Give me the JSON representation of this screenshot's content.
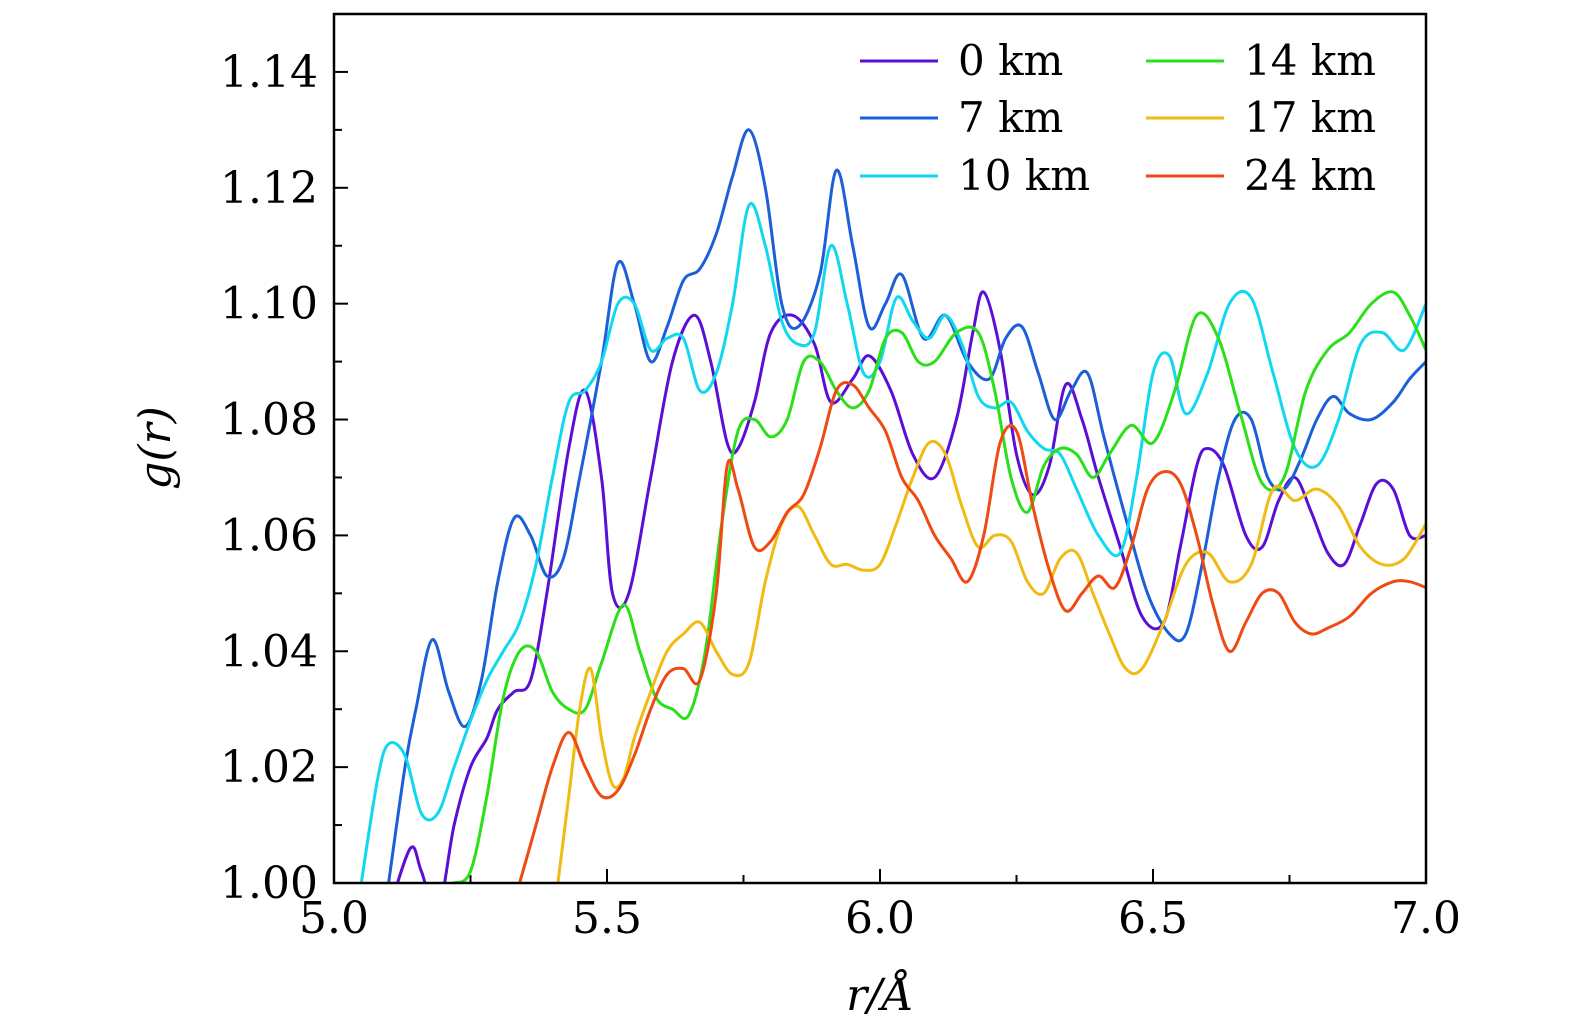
{
  "chart_data": {
    "type": "line",
    "xlabel": "r/Å",
    "ylabel": "g(r)",
    "xlim": [
      5.0,
      7.0
    ],
    "ylim": [
      1.0,
      1.15
    ],
    "xticks": [
      5.0,
      5.5,
      6.0,
      6.5,
      7.0
    ],
    "xtick_labels": [
      "5.0",
      "5.5",
      "6.0",
      "6.5",
      "7.0"
    ],
    "yticks": [
      1.0,
      1.02,
      1.04,
      1.06,
      1.08,
      1.1,
      1.12,
      1.14
    ],
    "ytick_labels": [
      "1.00",
      "1.02",
      "1.04",
      "1.06",
      "1.08",
      "1.10",
      "1.12",
      "1.14"
    ],
    "legend_position": "top-right",
    "series": [
      {
        "name": "0 km",
        "color": "#5b0fd6",
        "x": [
          5.1,
          5.14,
          5.16,
          5.19,
          5.22,
          5.25,
          5.28,
          5.3,
          5.33,
          5.36,
          5.39,
          5.43,
          5.46,
          5.49,
          5.51,
          5.54,
          5.58,
          5.62,
          5.66,
          5.69,
          5.72,
          5.74,
          5.77,
          5.8,
          5.84,
          5.88,
          5.91,
          5.95,
          5.98,
          6.02,
          6.06,
          6.1,
          6.14,
          6.17,
          6.19,
          6.22,
          6.25,
          6.28,
          6.31,
          6.34,
          6.37,
          6.4,
          6.44,
          6.48,
          6.52,
          6.55,
          6.58,
          6.6,
          6.63,
          6.67,
          6.7,
          6.73,
          6.76,
          6.79,
          6.82,
          6.85,
          6.88,
          6.91,
          6.94,
          6.97,
          7.0
        ],
        "y": [
          0.995,
          1.006,
          1.002,
          0.995,
          1.01,
          1.02,
          1.025,
          1.03,
          1.033,
          1.035,
          1.05,
          1.075,
          1.085,
          1.07,
          1.05,
          1.05,
          1.07,
          1.09,
          1.098,
          1.09,
          1.076,
          1.075,
          1.083,
          1.095,
          1.098,
          1.093,
          1.083,
          1.087,
          1.091,
          1.085,
          1.074,
          1.07,
          1.08,
          1.095,
          1.102,
          1.092,
          1.074,
          1.067,
          1.072,
          1.086,
          1.08,
          1.07,
          1.058,
          1.046,
          1.045,
          1.058,
          1.072,
          1.075,
          1.072,
          1.06,
          1.058,
          1.066,
          1.07,
          1.064,
          1.057,
          1.055,
          1.062,
          1.069,
          1.068,
          1.06,
          1.06
        ]
      },
      {
        "name": "7 km",
        "color": "#1c5fd8",
        "x": [
          5.1,
          5.13,
          5.15,
          5.18,
          5.21,
          5.24,
          5.27,
          5.3,
          5.33,
          5.36,
          5.39,
          5.42,
          5.45,
          5.49,
          5.52,
          5.55,
          5.58,
          5.61,
          5.64,
          5.67,
          5.7,
          5.73,
          5.76,
          5.79,
          5.82,
          5.85,
          5.89,
          5.92,
          5.95,
          5.98,
          6.01,
          6.04,
          6.08,
          6.12,
          6.16,
          6.2,
          6.23,
          6.26,
          6.29,
          6.32,
          6.35,
          6.38,
          6.41,
          6.45,
          6.49,
          6.53,
          6.56,
          6.59,
          6.62,
          6.65,
          6.68,
          6.71,
          6.74,
          6.77,
          6.8,
          6.83,
          6.86,
          6.9,
          6.94,
          6.97,
          7.0
        ],
        "y": [
          1.0,
          1.02,
          1.03,
          1.042,
          1.033,
          1.027,
          1.035,
          1.052,
          1.063,
          1.06,
          1.053,
          1.056,
          1.07,
          1.09,
          1.107,
          1.1,
          1.09,
          1.096,
          1.104,
          1.106,
          1.112,
          1.122,
          1.13,
          1.12,
          1.1,
          1.096,
          1.105,
          1.123,
          1.11,
          1.096,
          1.1,
          1.105,
          1.094,
          1.098,
          1.09,
          1.087,
          1.094,
          1.096,
          1.088,
          1.08,
          1.085,
          1.088,
          1.077,
          1.063,
          1.05,
          1.043,
          1.043,
          1.055,
          1.07,
          1.08,
          1.08,
          1.07,
          1.068,
          1.073,
          1.08,
          1.084,
          1.081,
          1.08,
          1.083,
          1.087,
          1.09
        ]
      },
      {
        "name": "10 km",
        "color": "#12d8ef",
        "x": [
          5.05,
          5.08,
          5.1,
          5.13,
          5.16,
          5.19,
          5.22,
          5.25,
          5.28,
          5.31,
          5.34,
          5.37,
          5.4,
          5.43,
          5.46,
          5.49,
          5.52,
          5.55,
          5.58,
          5.61,
          5.64,
          5.67,
          5.7,
          5.73,
          5.76,
          5.79,
          5.82,
          5.85,
          5.88,
          5.91,
          5.94,
          5.97,
          6.0,
          6.03,
          6.06,
          6.09,
          6.12,
          6.15,
          6.18,
          6.21,
          6.24,
          6.27,
          6.3,
          6.33,
          6.36,
          6.4,
          6.44,
          6.47,
          6.5,
          6.53,
          6.56,
          6.6,
          6.64,
          6.68,
          6.72,
          6.76,
          6.8,
          6.84,
          6.88,
          6.92,
          6.96,
          7.0
        ],
        "y": [
          1.0,
          1.018,
          1.024,
          1.022,
          1.012,
          1.012,
          1.02,
          1.028,
          1.035,
          1.04,
          1.045,
          1.055,
          1.07,
          1.083,
          1.085,
          1.09,
          1.1,
          1.1,
          1.092,
          1.094,
          1.094,
          1.085,
          1.088,
          1.1,
          1.117,
          1.11,
          1.097,
          1.093,
          1.095,
          1.11,
          1.1,
          1.088,
          1.09,
          1.101,
          1.097,
          1.094,
          1.098,
          1.093,
          1.084,
          1.082,
          1.083,
          1.078,
          1.075,
          1.074,
          1.068,
          1.06,
          1.057,
          1.07,
          1.088,
          1.091,
          1.081,
          1.088,
          1.1,
          1.101,
          1.088,
          1.075,
          1.072,
          1.08,
          1.093,
          1.095,
          1.092,
          1.1
        ]
      },
      {
        "name": "14 km",
        "color": "#2ae018",
        "x": [
          5.22,
          5.25,
          5.28,
          5.31,
          5.34,
          5.37,
          5.4,
          5.43,
          5.46,
          5.49,
          5.53,
          5.56,
          5.59,
          5.62,
          5.65,
          5.68,
          5.71,
          5.74,
          5.77,
          5.8,
          5.83,
          5.86,
          5.89,
          5.92,
          5.95,
          5.98,
          6.01,
          6.04,
          6.07,
          6.1,
          6.14,
          6.18,
          6.21,
          6.24,
          6.27,
          6.3,
          6.33,
          6.36,
          6.39,
          6.42,
          6.46,
          6.5,
          6.54,
          6.58,
          6.62,
          6.66,
          6.7,
          6.74,
          6.78,
          6.82,
          6.86,
          6.9,
          6.94,
          6.97,
          7.0
        ],
        "y": [
          1.0,
          1.002,
          1.015,
          1.032,
          1.04,
          1.04,
          1.033,
          1.03,
          1.03,
          1.038,
          1.048,
          1.04,
          1.032,
          1.03,
          1.029,
          1.04,
          1.062,
          1.078,
          1.08,
          1.077,
          1.08,
          1.09,
          1.09,
          1.085,
          1.082,
          1.085,
          1.094,
          1.095,
          1.09,
          1.09,
          1.095,
          1.095,
          1.085,
          1.07,
          1.064,
          1.072,
          1.075,
          1.074,
          1.07,
          1.074,
          1.079,
          1.076,
          1.085,
          1.098,
          1.094,
          1.081,
          1.069,
          1.07,
          1.085,
          1.092,
          1.095,
          1.1,
          1.102,
          1.098,
          1.092
        ]
      },
      {
        "name": "17 km",
        "color": "#f0bb12",
        "x": [
          5.41,
          5.43,
          5.45,
          5.47,
          5.49,
          5.51,
          5.53,
          5.55,
          5.58,
          5.61,
          5.64,
          5.67,
          5.7,
          5.73,
          5.76,
          5.79,
          5.82,
          5.85,
          5.88,
          5.91,
          5.94,
          5.97,
          6.0,
          6.03,
          6.06,
          6.09,
          6.12,
          6.15,
          6.18,
          6.21,
          6.24,
          6.27,
          6.3,
          6.33,
          6.36,
          6.39,
          6.42,
          6.45,
          6.48,
          6.52,
          6.56,
          6.6,
          6.64,
          6.68,
          6.72,
          6.76,
          6.8,
          6.84,
          6.88,
          6.92,
          6.96,
          7.0
        ],
        "y": [
          1.0,
          1.015,
          1.03,
          1.037,
          1.025,
          1.017,
          1.018,
          1.025,
          1.033,
          1.04,
          1.043,
          1.045,
          1.04,
          1.036,
          1.038,
          1.052,
          1.062,
          1.065,
          1.06,
          1.055,
          1.055,
          1.054,
          1.055,
          1.062,
          1.07,
          1.076,
          1.074,
          1.065,
          1.058,
          1.06,
          1.059,
          1.052,
          1.05,
          1.056,
          1.057,
          1.05,
          1.043,
          1.037,
          1.037,
          1.045,
          1.055,
          1.057,
          1.052,
          1.055,
          1.068,
          1.066,
          1.068,
          1.065,
          1.058,
          1.055,
          1.056,
          1.062
        ]
      },
      {
        "name": "24 km",
        "color": "#ef4a12",
        "x": [
          5.34,
          5.37,
          5.4,
          5.43,
          5.46,
          5.49,
          5.52,
          5.55,
          5.58,
          5.61,
          5.64,
          5.67,
          5.7,
          5.72,
          5.74,
          5.77,
          5.8,
          5.83,
          5.86,
          5.89,
          5.92,
          5.95,
          5.98,
          6.01,
          6.04,
          6.07,
          6.1,
          6.13,
          6.16,
          6.19,
          6.22,
          6.25,
          6.28,
          6.31,
          6.34,
          6.37,
          6.4,
          6.43,
          6.46,
          6.49,
          6.52,
          6.55,
          6.58,
          6.61,
          6.64,
          6.67,
          6.7,
          6.73,
          6.76,
          6.79,
          6.82,
          6.86,
          6.9,
          6.94,
          6.97,
          7.0
        ],
        "y": [
          1.0,
          1.01,
          1.02,
          1.026,
          1.02,
          1.015,
          1.016,
          1.022,
          1.03,
          1.036,
          1.037,
          1.035,
          1.05,
          1.072,
          1.068,
          1.058,
          1.059,
          1.064,
          1.067,
          1.075,
          1.085,
          1.086,
          1.082,
          1.078,
          1.07,
          1.066,
          1.06,
          1.056,
          1.052,
          1.06,
          1.076,
          1.078,
          1.065,
          1.054,
          1.047,
          1.05,
          1.053,
          1.051,
          1.058,
          1.068,
          1.071,
          1.069,
          1.06,
          1.048,
          1.04,
          1.045,
          1.05,
          1.05,
          1.045,
          1.043,
          1.044,
          1.046,
          1.05,
          1.052,
          1.052,
          1.051
        ]
      }
    ]
  }
}
